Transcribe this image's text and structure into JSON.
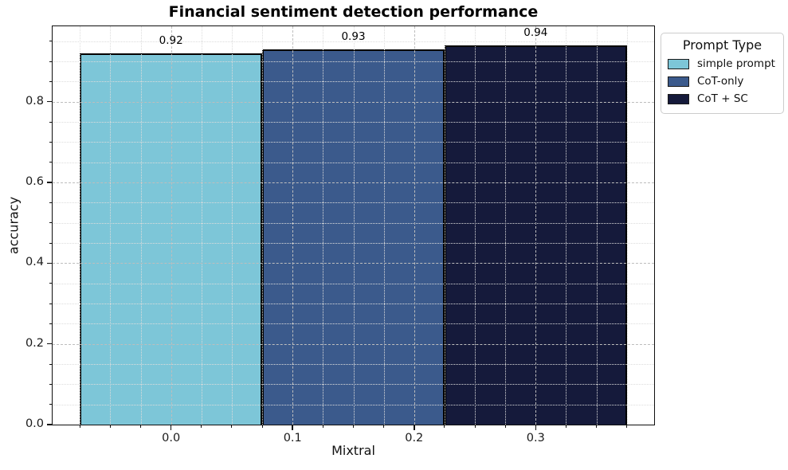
{
  "chart_data": {
    "type": "bar",
    "title": "Financial sentiment detection performance",
    "xlabel": "Mixtral",
    "ylabel": "accuracy",
    "series": [
      {
        "name": "simple prompt",
        "value": 0.92,
        "label": "0.92",
        "color": "#7dc6d8",
        "x_center": 0.0
      },
      {
        "name": "CoT-only",
        "value": 0.93,
        "label": "0.93",
        "color": "#3b5a8c",
        "x_center": 0.15
      },
      {
        "name": "CoT + SC",
        "value": 0.94,
        "label": "0.94",
        "color": "#151a3b",
        "x_center": 0.3
      }
    ],
    "bar_width": 0.15,
    "xlim": [
      -0.0975,
      0.3975
    ],
    "ylim": [
      0,
      0.987
    ],
    "x_ticks": {
      "major": [
        0.0,
        0.1,
        0.2,
        0.3
      ],
      "labels": [
        "0.0",
        "0.1",
        "0.2",
        "0.3"
      ],
      "minor_step": 0.025,
      "major_step": 0.1
    },
    "y_ticks": {
      "major": [
        0.0,
        0.2,
        0.4,
        0.6,
        0.8
      ],
      "labels": [
        "0.0",
        "0.2",
        "0.4",
        "0.6",
        "0.8"
      ],
      "minor_step": 0.05,
      "major_step": 0.2
    },
    "grid": {
      "major": true,
      "minor": true
    },
    "legend": {
      "title": "Prompt Type",
      "position": "outside-upper-right",
      "entries": [
        {
          "label": "simple prompt",
          "color": "#7dc6d8"
        },
        {
          "label": "CoT-only",
          "color": "#3b5a8c"
        },
        {
          "label": "CoT + SC",
          "color": "#151a3b"
        }
      ]
    },
    "colors": {
      "grid_major": "#bdbdbd",
      "grid_minor": "#dcdcdc",
      "bar_edge": "#000000",
      "spine": "#0f0f0f",
      "background": "#ffffff"
    }
  }
}
